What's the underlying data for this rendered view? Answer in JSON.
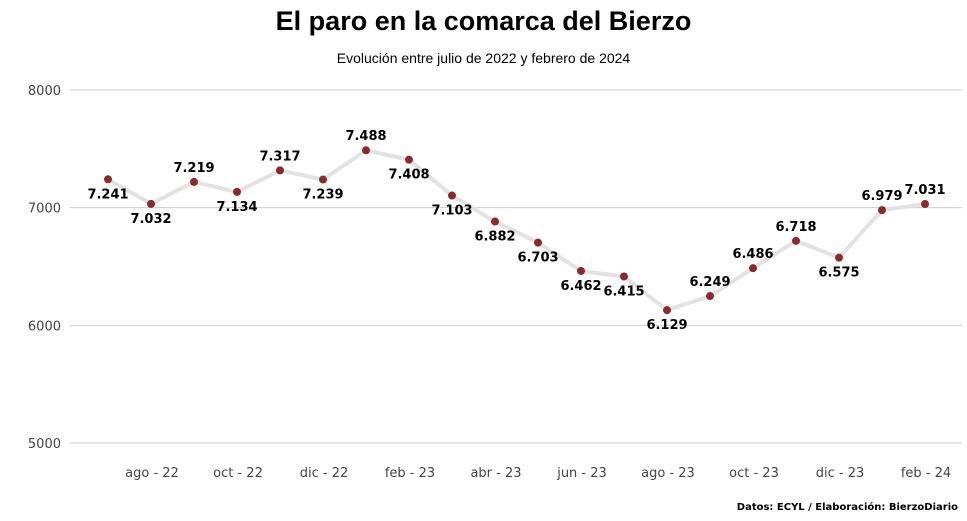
{
  "chart_data": {
    "type": "line",
    "title": "El paro en la comarca del Bierzo",
    "subtitle": "Evolución entre julio de 2022 y febrero de 2024",
    "source": "Datos: ECYL / Elaboración: BierzoDiario",
    "ylim": [
      5000,
      8000
    ],
    "y_ticks": [
      "8000",
      "7000",
      "6000",
      "5000"
    ],
    "x_tick_labels": [
      {
        "index": 1,
        "label": "ago - 22"
      },
      {
        "index": 3,
        "label": "oct - 22"
      },
      {
        "index": 5,
        "label": "dic - 22"
      },
      {
        "index": 7,
        "label": "feb - 23"
      },
      {
        "index": 9,
        "label": "abr - 23"
      },
      {
        "index": 11,
        "label": "jun - 23"
      },
      {
        "index": 13,
        "label": "ago - 23"
      },
      {
        "index": 15,
        "label": "oct - 23"
      },
      {
        "index": 17,
        "label": "dic - 23"
      },
      {
        "index": 19,
        "label": "feb - 24"
      }
    ],
    "grid": true,
    "legend": "none",
    "colors": {
      "line": "#e2e2e2",
      "marker": "#8b2a2a",
      "grid": "#cccccc"
    },
    "series": [
      {
        "values": [
          7241,
          7032,
          7219,
          7134,
          7317,
          7239,
          7488,
          7408,
          7103,
          6882,
          6703,
          6462,
          6415,
          6129,
          6249,
          6486,
          6718,
          6575,
          6979,
          7031
        ],
        "labels": [
          "7.241",
          "7.032",
          "7.219",
          "7.134",
          "7.317",
          "7.239",
          "7.488",
          "7.408",
          "7.103",
          "6.882",
          "6.703",
          "6.462",
          "6.415",
          "6.129",
          "6.249",
          "6.486",
          "6.718",
          "6.575",
          "6.979",
          "7.031"
        ]
      }
    ]
  }
}
